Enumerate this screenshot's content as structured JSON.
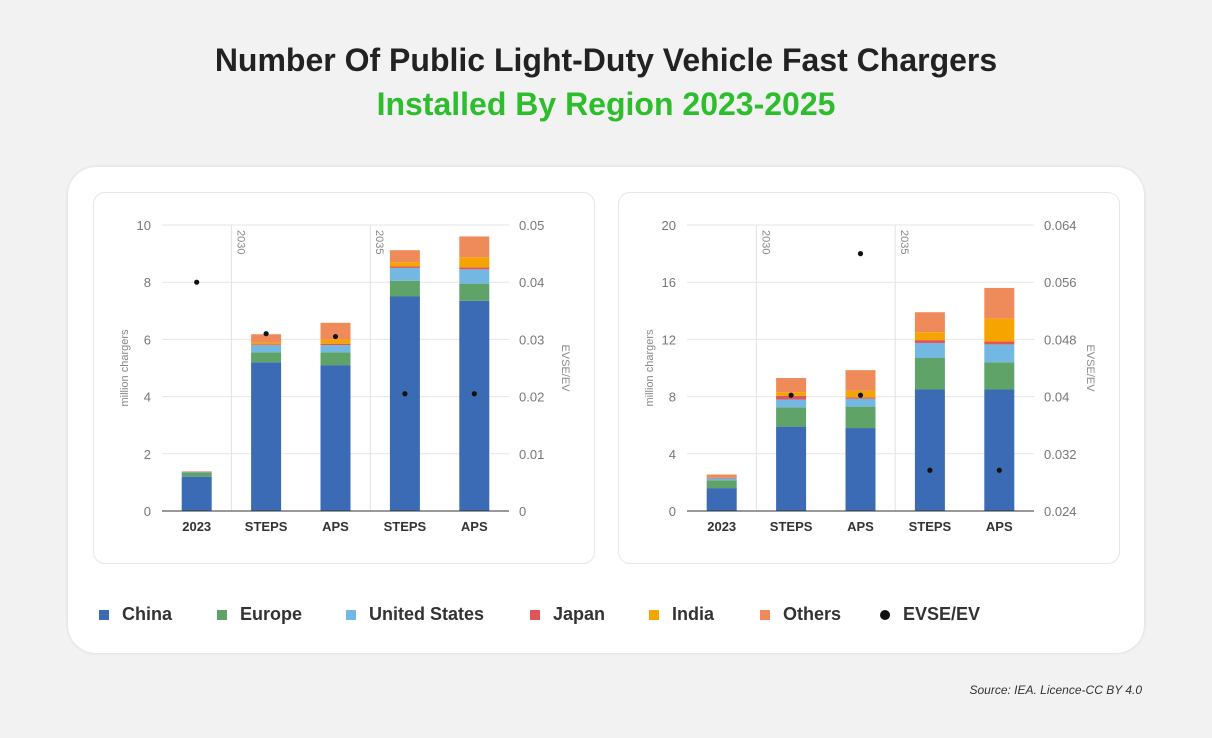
{
  "title_line1": "Number Of Public Light-Duty Vehicle Fast Chargers",
  "title_line2": "Installed By Region 2023-2025",
  "colors": {
    "China": "#3a6bb4",
    "Europe": "#5fa368",
    "United States": "#72b8e3",
    "Japan": "#e25555",
    "India": "#f6a500",
    "Others": "#ef8a5a",
    "EVSE/EV": "#111111"
  },
  "legend": [
    "China",
    "Europe",
    "United States",
    "Japan",
    "India",
    "Others",
    "EVSE/EV"
  ],
  "source": "Source: IEA. Licence-CC BY 4.0",
  "chart_data": [
    {
      "type": "bar",
      "stacked": true,
      "categories": [
        "2023",
        "STEPS",
        "APS",
        "STEPS",
        "APS"
      ],
      "dividers": [
        {
          "after": 0,
          "label": "2030"
        },
        {
          "after": 2,
          "label": "2035"
        }
      ],
      "ylabel": "million chargers",
      "ylim": [
        0,
        10
      ],
      "yticks": [
        0,
        2,
        4,
        6,
        8,
        10
      ],
      "y2label": "EVSE/EV",
      "y2lim": [
        0,
        0.05
      ],
      "y2ticks": [
        0,
        0.01,
        0.02,
        0.03,
        0.04,
        0.05
      ],
      "series": [
        {
          "name": "China",
          "values": [
            1.2,
            5.2,
            5.1,
            7.5,
            7.35
          ]
        },
        {
          "name": "Europe",
          "values": [
            0.15,
            0.35,
            0.45,
            0.55,
            0.6
          ]
        },
        {
          "name": "United States",
          "values": [
            0.02,
            0.25,
            0.25,
            0.45,
            0.5
          ]
        },
        {
          "name": "Japan",
          "values": [
            0.01,
            0.03,
            0.05,
            0.05,
            0.07
          ]
        },
        {
          "name": "India",
          "values": [
            0.0,
            0.05,
            0.15,
            0.15,
            0.35
          ]
        },
        {
          "name": "Others",
          "values": [
            0.0,
            0.3,
            0.58,
            0.42,
            0.73
          ]
        }
      ],
      "ratio": {
        "name": "EVSE/EV",
        "values": [
          0.04,
          0.031,
          0.0305,
          0.0205,
          0.0205
        ]
      }
    },
    {
      "type": "bar",
      "stacked": true,
      "categories": [
        "2023",
        "STEPS",
        "APS",
        "STEPS",
        "APS"
      ],
      "dividers": [
        {
          "after": 0,
          "label": "2030"
        },
        {
          "after": 2,
          "label": "2035"
        }
      ],
      "ylabel": "million chargers",
      "ylim": [
        0,
        20
      ],
      "yticks": [
        0,
        4,
        8,
        12,
        16,
        20
      ],
      "y2label": "EVSE/EV",
      "y2lim": [
        0.024,
        0.064
      ],
      "y2ticks": [
        0.024,
        0.032,
        0.04,
        0.048,
        0.056,
        0.064
      ],
      "series": [
        {
          "name": "China",
          "values": [
            1.6,
            5.9,
            5.8,
            8.5,
            8.5
          ]
        },
        {
          "name": "Europe",
          "values": [
            0.55,
            1.35,
            1.5,
            2.2,
            1.9
          ]
        },
        {
          "name": "United States",
          "values": [
            0.15,
            0.55,
            0.55,
            1.05,
            1.25
          ]
        },
        {
          "name": "Japan",
          "values": [
            0.02,
            0.25,
            0.1,
            0.2,
            0.2
          ]
        },
        {
          "name": "India",
          "values": [
            0.0,
            0.25,
            0.45,
            0.55,
            1.6
          ]
        },
        {
          "name": "Others",
          "values": [
            0.23,
            1.0,
            1.45,
            1.4,
            2.15
          ]
        }
      ],
      "ratio": {
        "name": "EVSE/EV",
        "values": [
          null,
          0.0402,
          0.0402,
          0.0297,
          0.0297
        ]
      },
      "ratio_outlier": {
        "category_index": 2,
        "value": 0.06
      }
    }
  ]
}
